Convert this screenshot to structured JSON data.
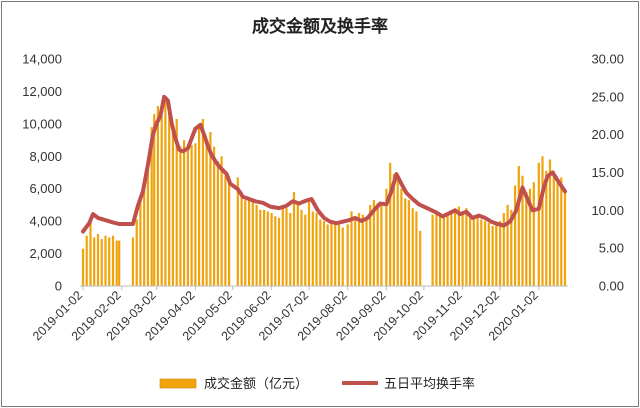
{
  "chart_data": {
    "type": "bar",
    "title": "成交金额及换手率",
    "legend": {
      "placement": "bottom"
    },
    "grid": false,
    "x_axis": {
      "tick_labels": [
        "2019-01-02",
        "2019-02-02",
        "2019-03-02",
        "2019-04-02",
        "2019-05-02",
        "2019-06-02",
        "2019-07-02",
        "2019-08-02",
        "2019-09-02",
        "2019-10-02",
        "2019-11-02",
        "2019-12-02",
        "2020-01-02"
      ],
      "range": [
        "2019-01-02",
        "2020-01-23"
      ]
    },
    "y_left": {
      "range": [
        0,
        14000
      ],
      "tick_labels": [
        "0",
        "2,000",
        "4,000",
        "6,000",
        "8,000",
        "10,000",
        "12,000",
        "14,000"
      ]
    },
    "y_right": {
      "range": [
        0,
        30
      ],
      "tick_labels": [
        "0.00",
        "5.00",
        "10.00",
        "15.00",
        "20.00",
        "25.00",
        "30.00"
      ]
    },
    "series": [
      {
        "name": "成交金额（亿元）",
        "kind": "bar",
        "axis": "left",
        "color": "#f0a30a",
        "points": [
          [
            "2019-01-02",
            2300
          ],
          [
            "2019-01-05",
            3100
          ],
          [
            "2019-01-08",
            3900
          ],
          [
            "2019-01-11",
            3000
          ],
          [
            "2019-01-14",
            3200
          ],
          [
            "2019-01-17",
            2900
          ],
          [
            "2019-01-20",
            3100
          ],
          [
            "2019-01-23",
            3000
          ],
          [
            "2019-01-26",
            3100
          ],
          [
            "2019-01-29",
            2800
          ],
          [
            "2019-01-31",
            2800
          ],
          [
            "2019-02-11",
            3000
          ],
          [
            "2019-02-14",
            4100
          ],
          [
            "2019-02-17",
            5500
          ],
          [
            "2019-02-20",
            6100
          ],
          [
            "2019-02-23",
            7700
          ],
          [
            "2019-02-26",
            9800
          ],
          [
            "2019-02-28",
            10600
          ],
          [
            "2019-03-03",
            11100
          ],
          [
            "2019-03-06",
            10500
          ],
          [
            "2019-03-09",
            11700
          ],
          [
            "2019-03-12",
            11000
          ],
          [
            "2019-03-15",
            9800
          ],
          [
            "2019-03-18",
            10300
          ],
          [
            "2019-03-21",
            8600
          ],
          [
            "2019-03-24",
            9000
          ],
          [
            "2019-03-27",
            8500
          ],
          [
            "2019-03-30",
            8700
          ],
          [
            "2019-04-02",
            8800
          ],
          [
            "2019-04-05",
            10000
          ],
          [
            "2019-04-08",
            10300
          ],
          [
            "2019-04-11",
            9000
          ],
          [
            "2019-04-14",
            9500
          ],
          [
            "2019-04-17",
            8600
          ],
          [
            "2019-04-20",
            7700
          ],
          [
            "2019-04-23",
            8000
          ],
          [
            "2019-04-26",
            6800
          ],
          [
            "2019-04-29",
            6700
          ],
          [
            "2019-05-06",
            6700
          ],
          [
            "2019-05-09",
            5800
          ],
          [
            "2019-05-12",
            5300
          ],
          [
            "2019-05-15",
            5400
          ],
          [
            "2019-05-18",
            5200
          ],
          [
            "2019-05-21",
            5000
          ],
          [
            "2019-05-24",
            4700
          ],
          [
            "2019-05-27",
            4700
          ],
          [
            "2019-05-30",
            4600
          ],
          [
            "2019-06-02",
            4500
          ],
          [
            "2019-06-05",
            4300
          ],
          [
            "2019-06-08",
            4200
          ],
          [
            "2019-06-11",
            5000
          ],
          [
            "2019-06-14",
            4800
          ],
          [
            "2019-06-17",
            4500
          ],
          [
            "2019-06-20",
            5800
          ],
          [
            "2019-06-23",
            5200
          ],
          [
            "2019-06-26",
            4700
          ],
          [
            "2019-06-29",
            4400
          ],
          [
            "2019-07-02",
            5300
          ],
          [
            "2019-07-05",
            4600
          ],
          [
            "2019-07-08",
            4500
          ],
          [
            "2019-07-11",
            4100
          ],
          [
            "2019-07-14",
            4000
          ],
          [
            "2019-07-17",
            3800
          ],
          [
            "2019-07-20",
            4000
          ],
          [
            "2019-07-23",
            3900
          ],
          [
            "2019-07-26",
            3800
          ],
          [
            "2019-07-29",
            3600
          ],
          [
            "2019-08-02",
            3800
          ],
          [
            "2019-08-05",
            4600
          ],
          [
            "2019-08-08",
            4300
          ],
          [
            "2019-08-11",
            4500
          ],
          [
            "2019-08-14",
            4400
          ],
          [
            "2019-08-17",
            4200
          ],
          [
            "2019-08-20",
            5000
          ],
          [
            "2019-08-23",
            5300
          ],
          [
            "2019-08-26",
            5100
          ],
          [
            "2019-08-29",
            5000
          ],
          [
            "2019-09-02",
            6000
          ],
          [
            "2019-09-05",
            7600
          ],
          [
            "2019-09-08",
            6900
          ],
          [
            "2019-09-11",
            6600
          ],
          [
            "2019-09-14",
            6000
          ],
          [
            "2019-09-17",
            5400
          ],
          [
            "2019-09-20",
            5300
          ],
          [
            "2019-09-23",
            4800
          ],
          [
            "2019-09-26",
            4600
          ],
          [
            "2019-09-29",
            3400
          ],
          [
            "2019-10-09",
            4400
          ],
          [
            "2019-10-12",
            4600
          ],
          [
            "2019-10-15",
            4300
          ],
          [
            "2019-10-18",
            4200
          ],
          [
            "2019-10-21",
            4400
          ],
          [
            "2019-10-24",
            4500
          ],
          [
            "2019-10-27",
            4600
          ],
          [
            "2019-10-30",
            4900
          ],
          [
            "2019-11-02",
            4500
          ],
          [
            "2019-11-05",
            4800
          ],
          [
            "2019-11-08",
            4400
          ],
          [
            "2019-11-11",
            4200
          ],
          [
            "2019-11-14",
            4300
          ],
          [
            "2019-11-17",
            4100
          ],
          [
            "2019-11-20",
            4000
          ],
          [
            "2019-11-23",
            3900
          ],
          [
            "2019-11-26",
            3700
          ],
          [
            "2019-11-29",
            3800
          ],
          [
            "2019-12-02",
            4000
          ],
          [
            "2019-12-05",
            4500
          ],
          [
            "2019-12-08",
            5000
          ],
          [
            "2019-12-11",
            4700
          ],
          [
            "2019-12-14",
            6200
          ],
          [
            "2019-12-17",
            7400
          ],
          [
            "2019-12-20",
            6800
          ],
          [
            "2019-12-23",
            5800
          ],
          [
            "2019-12-26",
            6000
          ],
          [
            "2019-12-29",
            6400
          ],
          [
            "2020-01-02",
            7600
          ],
          [
            "2020-01-05",
            8000
          ],
          [
            "2020-01-08",
            7100
          ],
          [
            "2020-01-11",
            7800
          ],
          [
            "2020-01-14",
            7100
          ],
          [
            "2020-01-17",
            6500
          ],
          [
            "2020-01-20",
            6700
          ],
          [
            "2020-01-23",
            5800
          ]
        ]
      },
      {
        "name": "五日平均换手率",
        "kind": "line",
        "axis": "right",
        "color": "#c0504d",
        "points": [
          [
            "2019-01-02",
            7.2
          ],
          [
            "2019-01-07",
            8.3
          ],
          [
            "2019-01-10",
            9.5
          ],
          [
            "2019-01-14",
            9.0
          ],
          [
            "2019-01-18",
            8.8
          ],
          [
            "2019-01-22",
            8.6
          ],
          [
            "2019-01-26",
            8.4
          ],
          [
            "2019-01-31",
            8.2
          ],
          [
            "2019-02-11",
            8.2
          ],
          [
            "2019-02-15",
            10.6
          ],
          [
            "2019-02-19",
            12.5
          ],
          [
            "2019-02-23",
            16.0
          ],
          [
            "2019-02-27",
            20.0
          ],
          [
            "2019-03-02",
            21.5
          ],
          [
            "2019-03-05",
            22.5
          ],
          [
            "2019-03-08",
            25.0
          ],
          [
            "2019-03-11",
            24.5
          ],
          [
            "2019-03-14",
            21.5
          ],
          [
            "2019-03-17",
            19.5
          ],
          [
            "2019-03-20",
            18.0
          ],
          [
            "2019-03-23",
            17.8
          ],
          [
            "2019-03-27",
            18.2
          ],
          [
            "2019-03-30",
            19.5
          ],
          [
            "2019-04-02",
            20.8
          ],
          [
            "2019-04-06",
            21.3
          ],
          [
            "2019-04-09",
            20.0
          ],
          [
            "2019-04-12",
            18.5
          ],
          [
            "2019-04-15",
            17.3
          ],
          [
            "2019-04-18",
            16.5
          ],
          [
            "2019-04-21",
            15.8
          ],
          [
            "2019-04-24",
            15.3
          ],
          [
            "2019-04-27",
            14.8
          ],
          [
            "2019-04-30",
            13.5
          ],
          [
            "2019-05-06",
            12.8
          ],
          [
            "2019-05-10",
            11.8
          ],
          [
            "2019-05-15",
            11.5
          ],
          [
            "2019-05-20",
            11.2
          ],
          [
            "2019-05-26",
            11.0
          ],
          [
            "2019-06-01",
            10.5
          ],
          [
            "2019-06-08",
            10.3
          ],
          [
            "2019-06-14",
            10.6
          ],
          [
            "2019-06-19",
            11.2
          ],
          [
            "2019-06-24",
            10.9
          ],
          [
            "2019-06-30",
            11.3
          ],
          [
            "2019-07-04",
            11.5
          ],
          [
            "2019-07-09",
            10.0
          ],
          [
            "2019-07-14",
            9.0
          ],
          [
            "2019-07-19",
            8.5
          ],
          [
            "2019-07-24",
            8.3
          ],
          [
            "2019-07-29",
            8.5
          ],
          [
            "2019-08-03",
            8.7
          ],
          [
            "2019-08-08",
            9.0
          ],
          [
            "2019-08-13",
            8.6
          ],
          [
            "2019-08-18",
            9.0
          ],
          [
            "2019-08-23",
            10.0
          ],
          [
            "2019-08-28",
            10.9
          ],
          [
            "2019-09-02",
            10.8
          ],
          [
            "2019-09-06",
            12.5
          ],
          [
            "2019-09-10",
            14.8
          ],
          [
            "2019-09-14",
            13.5
          ],
          [
            "2019-09-18",
            12.3
          ],
          [
            "2019-09-23",
            11.5
          ],
          [
            "2019-09-28",
            10.8
          ],
          [
            "2019-10-12",
            9.7
          ],
          [
            "2019-10-17",
            9.2
          ],
          [
            "2019-10-22",
            9.6
          ],
          [
            "2019-10-27",
            10.0
          ],
          [
            "2019-10-31",
            9.5
          ],
          [
            "2019-11-05",
            9.8
          ],
          [
            "2019-11-10",
            9.0
          ],
          [
            "2019-11-15",
            9.3
          ],
          [
            "2019-11-20",
            9.0
          ],
          [
            "2019-11-25",
            8.5
          ],
          [
            "2019-11-30",
            8.2
          ],
          [
            "2019-12-05",
            8.0
          ],
          [
            "2019-12-10",
            8.5
          ],
          [
            "2019-12-15",
            10.0
          ],
          [
            "2019-12-20",
            13.0
          ],
          [
            "2019-12-24",
            11.5
          ],
          [
            "2019-12-28",
            10.0
          ],
          [
            "2020-01-02",
            10.2
          ],
          [
            "2020-01-06",
            13.0
          ],
          [
            "2020-01-09",
            14.5
          ],
          [
            "2020-01-13",
            15.0
          ],
          [
            "2020-01-17",
            14.0
          ],
          [
            "2020-01-23",
            12.5
          ]
        ]
      }
    ]
  }
}
